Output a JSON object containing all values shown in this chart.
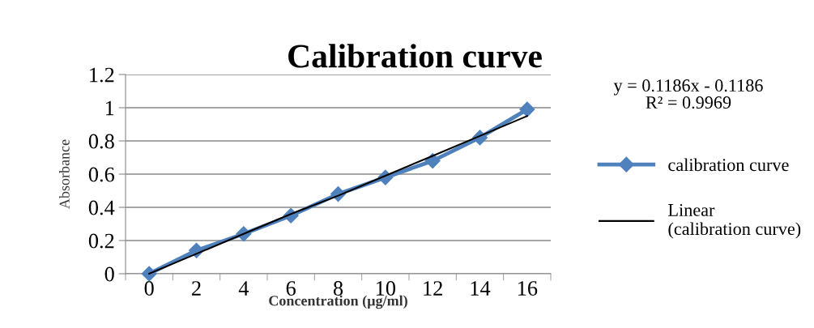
{
  "chart_data": {
    "type": "line",
    "title": "Calibration curve",
    "xlabel": "Concentration (µg/ml)",
    "ylabel": "Absorbance",
    "categories": [
      "0",
      "2",
      "4",
      "6",
      "8",
      "10",
      "12",
      "14",
      "16"
    ],
    "series": [
      {
        "name": "calibration curve",
        "color": "#4f81bd",
        "marker": "diamond",
        "values": [
          0,
          0.14,
          0.24,
          0.35,
          0.48,
          0.58,
          0.68,
          0.82,
          0.99
        ]
      },
      {
        "name": "Linear (calibration curve)",
        "color": "#000000",
        "marker": "none",
        "values": [
          0,
          0.12,
          0.24,
          0.36,
          0.47,
          0.59,
          0.71,
          0.83,
          0.95
        ]
      }
    ],
    "ylim": [
      0,
      1.2
    ],
    "yticks": [
      0,
      0.2,
      0.4,
      0.6,
      0.8,
      1,
      1.2
    ],
    "annotations": [
      "y = 0.1186x - 0.1186",
      "R² = 0.9969"
    ],
    "grid": "y",
    "legend": "right",
    "line_style": "solid"
  }
}
